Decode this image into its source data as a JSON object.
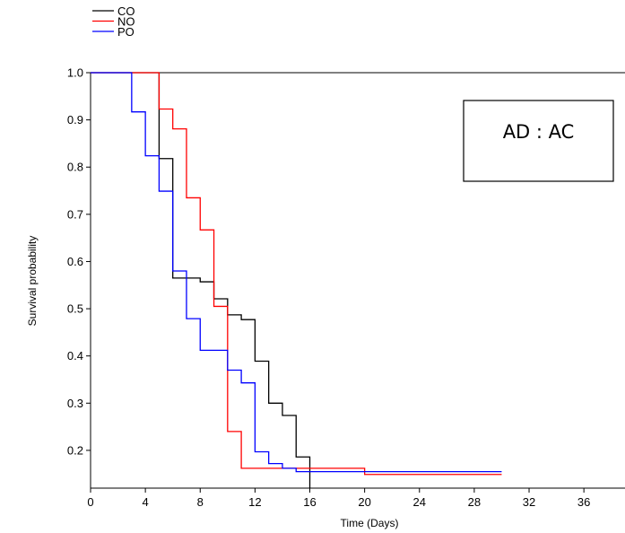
{
  "chart_data": {
    "type": "line",
    "step": true,
    "xlabel": "Time (Days)",
    "ylabel": "Survival probability",
    "xlim": [
      0,
      39
    ],
    "ylim": [
      0.12,
      1.0
    ],
    "xticks": [
      0,
      4,
      8,
      12,
      16,
      20,
      24,
      28,
      32,
      36
    ],
    "yticks": [
      0.2,
      0.3,
      0.4,
      0.5,
      0.6,
      0.7,
      0.8,
      0.9,
      1.0
    ],
    "ytick_labels": [
      "0.2",
      "0.3",
      "0.4",
      "0.5",
      "0.6",
      "0.7",
      "0.8",
      "0.9",
      "1.0"
    ],
    "grid": false,
    "legend_position": "top-left",
    "annotation": "AD : AC",
    "series": [
      {
        "name": "CO",
        "color": "#000000",
        "x": [
          0,
          5,
          5.5,
          6,
          8,
          9,
          10,
          11,
          12,
          13,
          14,
          15,
          16
        ],
        "y": [
          1.0,
          0.818,
          0.818,
          0.565,
          0.557,
          0.521,
          0.487,
          0.477,
          0.389,
          0.3,
          0.274,
          0.186,
          0.12
        ]
      },
      {
        "name": "NO",
        "color": "#ff0000",
        "x": [
          0,
          5,
          6,
          7,
          8,
          9,
          10,
          11,
          20,
          30
        ],
        "y": [
          1.0,
          0.923,
          0.881,
          0.735,
          0.667,
          0.505,
          0.24,
          0.162,
          0.149,
          0.149
        ]
      },
      {
        "name": "PO",
        "color": "#0000ff",
        "x": [
          0,
          3,
          4,
          5,
          6,
          7,
          8,
          10,
          11,
          12,
          13,
          14,
          15,
          20,
          30
        ],
        "y": [
          1.0,
          0.917,
          0.824,
          0.749,
          0.58,
          0.479,
          0.412,
          0.37,
          0.343,
          0.197,
          0.172,
          0.162,
          0.155,
          0.155,
          0.155
        ]
      }
    ]
  }
}
